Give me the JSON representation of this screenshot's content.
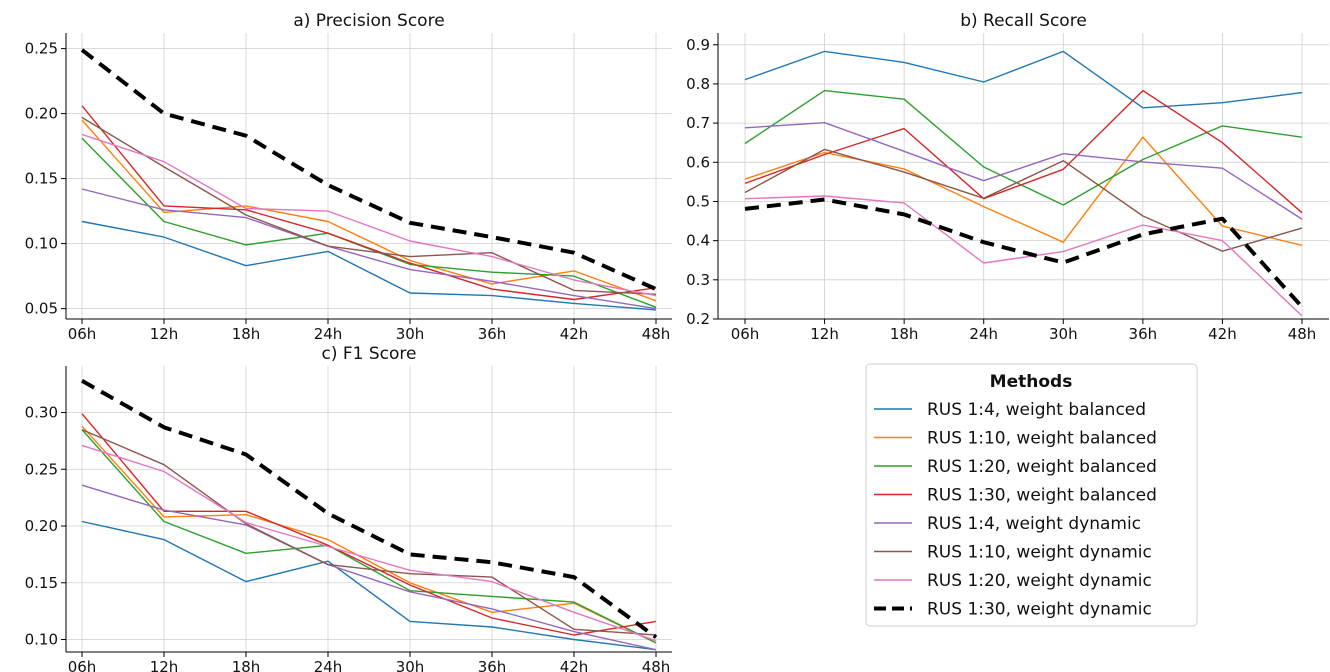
{
  "legend": {
    "title": "Methods",
    "placement": "lower-right-panel"
  },
  "chart_data": [
    {
      "type": "line",
      "title": "a) Precision Score",
      "xlabel": "",
      "ylabel": "",
      "ylim": [
        0.042,
        0.262
      ],
      "yticks": [
        0.05,
        0.1,
        0.15,
        0.2,
        0.25
      ],
      "ytick_labels": [
        "0.05",
        "0.10",
        "0.15",
        "0.20",
        "0.25"
      ],
      "grid": true,
      "categories": [
        "06h",
        "12h",
        "18h",
        "24h",
        "30h",
        "36h",
        "42h",
        "48h"
      ],
      "series": [
        {
          "name": "RUS 1:4, weight balanced",
          "color": "#1f77b4",
          "values": [
            0.117,
            0.105,
            0.083,
            0.094,
            0.062,
            0.06,
            0.054,
            0.049
          ]
        },
        {
          "name": "RUS 1:10, weight balanced",
          "color": "#ff7f0e",
          "values": [
            0.195,
            0.124,
            0.129,
            0.117,
            0.087,
            0.069,
            0.079,
            0.056
          ]
        },
        {
          "name": "RUS 1:20, weight balanced",
          "color": "#2ca02c",
          "values": [
            0.181,
            0.117,
            0.099,
            0.108,
            0.084,
            0.078,
            0.075,
            0.051
          ]
        },
        {
          "name": "RUS 1:30, weight balanced",
          "color": "#d62728",
          "values": [
            0.206,
            0.129,
            0.126,
            0.108,
            0.085,
            0.065,
            0.057,
            0.066
          ]
        },
        {
          "name": "RUS 1:4, weight dynamic",
          "color": "#9467bd",
          "values": [
            0.142,
            0.126,
            0.12,
            0.098,
            0.08,
            0.071,
            0.06,
            0.05
          ]
        },
        {
          "name": "RUS 1:10, weight dynamic",
          "color": "#8c564b",
          "values": [
            0.197,
            0.159,
            0.122,
            0.098,
            0.09,
            0.093,
            0.064,
            0.061
          ]
        },
        {
          "name": "RUS 1:20, weight dynamic",
          "color": "#e377c2",
          "values": [
            0.184,
            0.163,
            0.127,
            0.125,
            0.102,
            0.09,
            0.072,
            0.06
          ]
        },
        {
          "name": "RUS 1:30, weight dynamic",
          "color": "#000000",
          "dashed": true,
          "values": [
            0.249,
            0.2,
            0.183,
            0.145,
            0.116,
            0.105,
            0.093,
            0.065
          ]
        }
      ]
    },
    {
      "type": "line",
      "title": "b) Recall Score",
      "xlabel": "",
      "ylabel": "",
      "ylim": [
        0.2,
        0.93
      ],
      "yticks": [
        0.2,
        0.3,
        0.4,
        0.5,
        0.6,
        0.7,
        0.8,
        0.9
      ],
      "ytick_labels": [
        "0.2",
        "0.3",
        "0.4",
        "0.5",
        "0.6",
        "0.7",
        "0.8",
        "0.9"
      ],
      "grid": true,
      "categories": [
        "06h",
        "12h",
        "18h",
        "24h",
        "30h",
        "36h",
        "42h",
        "48h"
      ],
      "series": [
        {
          "name": "RUS 1:4, weight balanced",
          "color": "#1f77b4",
          "values": [
            0.811,
            0.883,
            0.855,
            0.805,
            0.883,
            0.739,
            0.752,
            0.778
          ]
        },
        {
          "name": "RUS 1:10, weight balanced",
          "color": "#ff7f0e",
          "values": [
            0.557,
            0.625,
            0.583,
            0.487,
            0.396,
            0.664,
            0.437,
            0.388
          ]
        },
        {
          "name": "RUS 1:20, weight balanced",
          "color": "#2ca02c",
          "values": [
            0.648,
            0.783,
            0.761,
            0.588,
            0.491,
            0.607,
            0.693,
            0.664
          ]
        },
        {
          "name": "RUS 1:30, weight balanced",
          "color": "#d62728",
          "values": [
            0.546,
            0.62,
            0.686,
            0.507,
            0.582,
            0.783,
            0.65,
            0.471
          ]
        },
        {
          "name": "RUS 1:4, weight dynamic",
          "color": "#9467bd",
          "values": [
            0.688,
            0.701,
            0.628,
            0.553,
            0.622,
            0.601,
            0.585,
            0.455
          ]
        },
        {
          "name": "RUS 1:10, weight dynamic",
          "color": "#8c564b",
          "values": [
            0.523,
            0.633,
            0.575,
            0.508,
            0.604,
            0.463,
            0.373,
            0.432
          ]
        },
        {
          "name": "RUS 1:20, weight dynamic",
          "color": "#e377c2",
          "values": [
            0.507,
            0.514,
            0.496,
            0.343,
            0.372,
            0.44,
            0.4,
            0.208
          ]
        },
        {
          "name": "RUS 1:30, weight dynamic",
          "color": "#000000",
          "dashed": true,
          "values": [
            0.481,
            0.505,
            0.467,
            0.396,
            0.344,
            0.416,
            0.456,
            0.231
          ]
        }
      ]
    },
    {
      "type": "line",
      "title": "c) F1 Score",
      "xlabel": "",
      "ylabel": "",
      "ylim": [
        0.089,
        0.341
      ],
      "yticks": [
        0.1,
        0.15,
        0.2,
        0.25,
        0.3
      ],
      "ytick_labels": [
        "0.10",
        "0.15",
        "0.20",
        "0.25",
        "0.30"
      ],
      "grid": true,
      "categories": [
        "06h",
        "12h",
        "18h",
        "24h",
        "30h",
        "36h",
        "42h",
        "48h"
      ],
      "series": [
        {
          "name": "RUS 1:4, weight balanced",
          "color": "#1f77b4",
          "values": [
            0.204,
            0.188,
            0.151,
            0.169,
            0.116,
            0.111,
            0.1,
            0.091
          ]
        },
        {
          "name": "RUS 1:10, weight balanced",
          "color": "#ff7f0e",
          "values": [
            0.288,
            0.208,
            0.21,
            0.188,
            0.15,
            0.124,
            0.132,
            0.097
          ]
        },
        {
          "name": "RUS 1:20, weight balanced",
          "color": "#2ca02c",
          "values": [
            0.285,
            0.204,
            0.176,
            0.183,
            0.143,
            0.138,
            0.133,
            0.097
          ]
        },
        {
          "name": "RUS 1:30, weight balanced",
          "color": "#d62728",
          "values": [
            0.299,
            0.213,
            0.213,
            0.183,
            0.148,
            0.119,
            0.104,
            0.116
          ]
        },
        {
          "name": "RUS 1:4, weight dynamic",
          "color": "#9467bd",
          "values": [
            0.236,
            0.214,
            0.201,
            0.166,
            0.142,
            0.127,
            0.107,
            0.091
          ]
        },
        {
          "name": "RUS 1:10, weight dynamic",
          "color": "#8c564b",
          "values": [
            0.285,
            0.254,
            0.202,
            0.166,
            0.158,
            0.155,
            0.109,
            0.104
          ]
        },
        {
          "name": "RUS 1:20, weight dynamic",
          "color": "#e377c2",
          "values": [
            0.271,
            0.248,
            0.203,
            0.182,
            0.161,
            0.151,
            0.124,
            0.099
          ]
        },
        {
          "name": "RUS 1:30, weight dynamic",
          "color": "#000000",
          "dashed": true,
          "values": [
            0.328,
            0.287,
            0.263,
            0.211,
            0.175,
            0.168,
            0.155,
            0.102
          ]
        }
      ]
    }
  ]
}
